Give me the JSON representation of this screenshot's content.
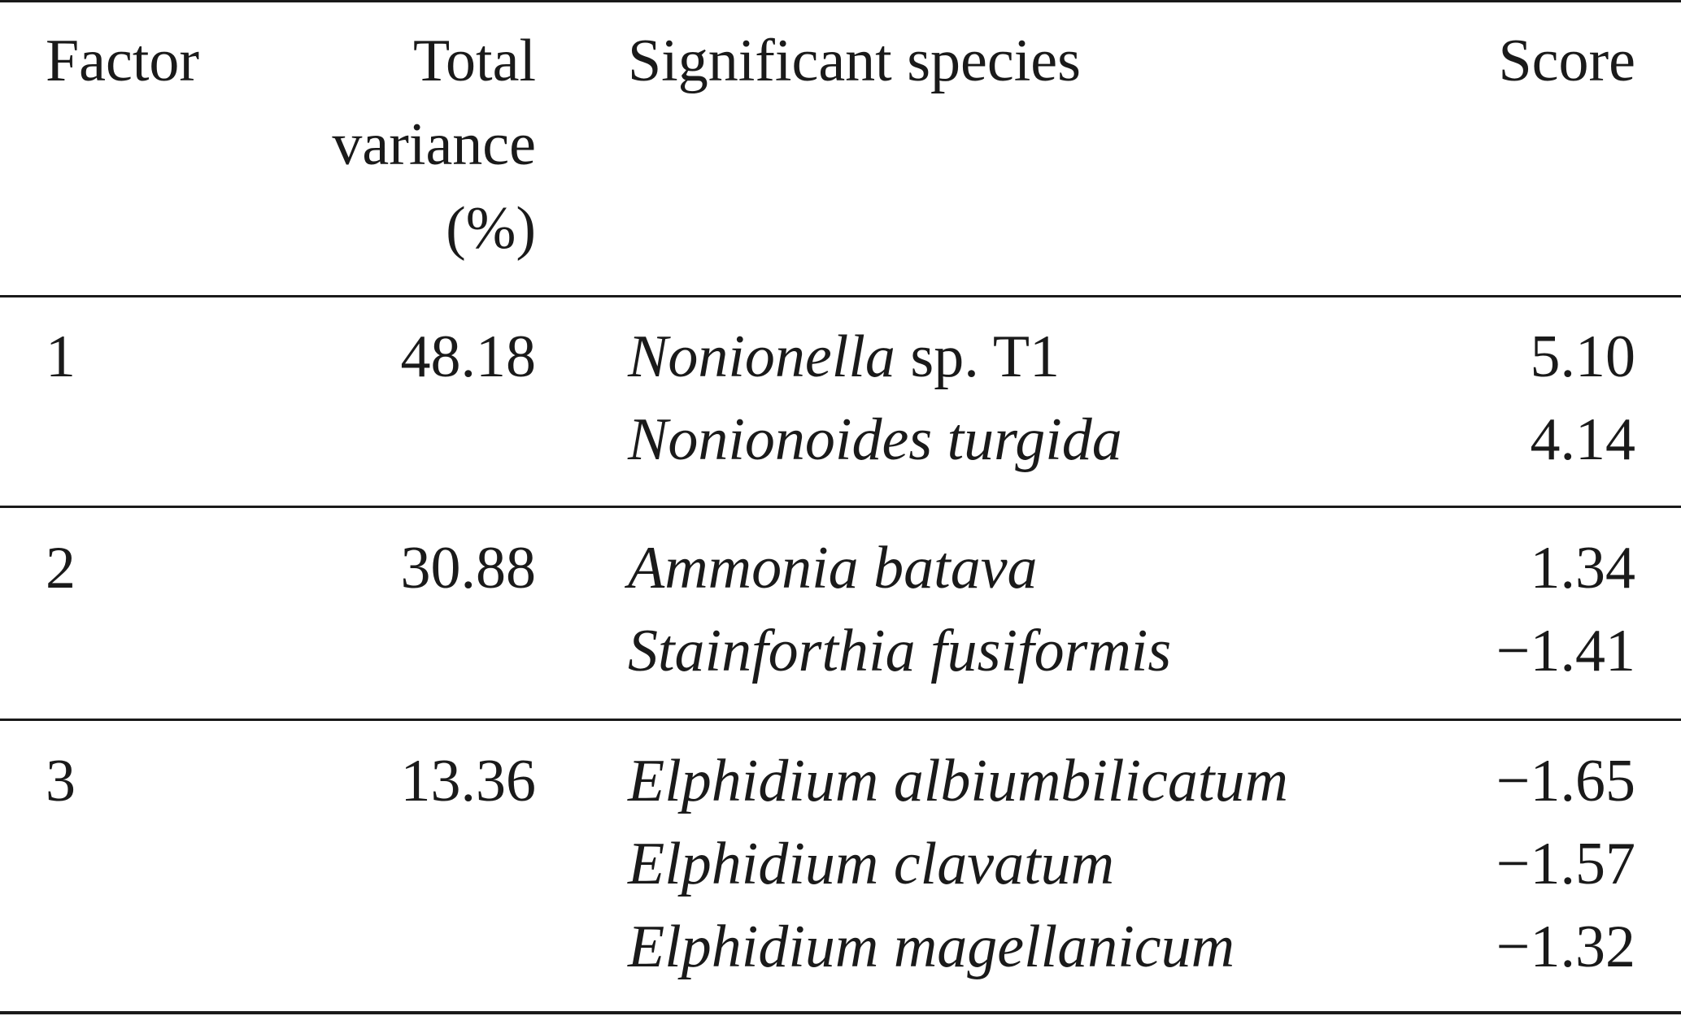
{
  "header": {
    "factor": "Factor",
    "variance_lines": [
      "Total",
      "variance",
      "(%)"
    ],
    "species": "Significant species",
    "score": "Score"
  },
  "rows": [
    {
      "factor": "1",
      "variance": "48.18",
      "species": [
        {
          "italic": "Nonionella",
          "plain": " sp. T1",
          "score": "5.10"
        },
        {
          "italic": "Nonionoides turgida",
          "plain": "",
          "score": "4.14"
        }
      ]
    },
    {
      "factor": "2",
      "variance": "30.88",
      "species": [
        {
          "italic": "Ammonia batava",
          "plain": "",
          "score": "1.34"
        },
        {
          "italic": "Stainforthia fusiformis",
          "plain": "",
          "score": "−1.41"
        }
      ]
    },
    {
      "factor": "3",
      "variance": "13.36",
      "species": [
        {
          "italic": "Elphidium albiumbilicatum",
          "plain": "",
          "score": "−1.65"
        },
        {
          "italic": "Elphidium clavatum",
          "plain": "",
          "score": "−1.57"
        },
        {
          "italic": "Elphidium magellanicum",
          "plain": "",
          "score": "−1.32"
        }
      ]
    }
  ]
}
